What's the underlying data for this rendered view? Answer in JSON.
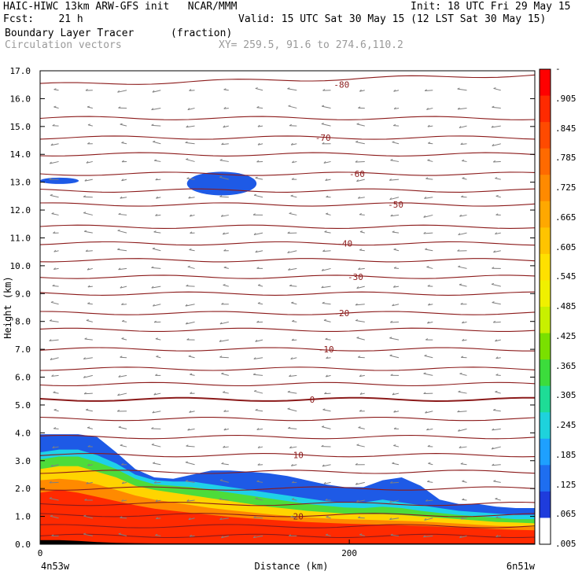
{
  "header": {
    "title_left": "HAIC-HIWC 13km ARW-GFS init   NCAR/MMM",
    "init_text": "Init: 18 UTC Fri 29 May 15",
    "fcst_text": "Fcst:    21 h",
    "valid_text": "Valid: 15 UTC Sat 30 May 15 (12 LST Sat 30 May 15)",
    "field_label": "Boundary Layer Tracer",
    "field_units": "(fraction)",
    "vector_label": "Circulation vectors",
    "xy_text": "XY= 259.5, 91.6 to 274.6,110.2"
  },
  "chart_data": {
    "type": "contour",
    "ylabel": "Height (km)",
    "xlabel": "Distance (km)",
    "x_left_label": "4n53w",
    "x_right_label": "6n51w",
    "ylim": [
      0,
      17
    ],
    "xlim": [
      0,
      320
    ],
    "y_ticks": [
      "0.0",
      "1.0",
      "2.0",
      "3.0",
      "4.0",
      "5.0",
      "6.0",
      "7.0",
      "8.0",
      "9.0",
      "10.0",
      "11.0",
      "12.0",
      "13.0",
      "14.0",
      "15.0",
      "16.0",
      "17.0"
    ],
    "x_ticks": [
      {
        "value": 0,
        "label": "0"
      },
      {
        "value": 200,
        "label": "200"
      }
    ],
    "temperature_contours": {
      "color": "#8b1a1a",
      "labels": [
        {
          "label": "-80",
          "x": 195,
          "y": 16.5
        },
        {
          "label": "-70",
          "x": 183,
          "y": 14.6
        },
        {
          "label": "-60",
          "x": 205,
          "y": 13.3
        },
        {
          "label": "-50",
          "x": 230,
          "y": 12.2
        },
        {
          "label": "-40",
          "x": 197,
          "y": 10.8
        },
        {
          "label": "-30",
          "x": 204,
          "y": 9.6
        },
        {
          "label": "-20",
          "x": 195,
          "y": 8.3
        },
        {
          "label": "-10",
          "x": 185,
          "y": 7.0
        },
        {
          "label": "0",
          "x": 176,
          "y": 5.2
        },
        {
          "label": "10",
          "x": 167,
          "y": 3.2
        },
        {
          "label": "20",
          "x": 167,
          "y": 1.0
        }
      ],
      "levels_km": [
        0.3,
        0.65,
        1.05,
        1.45,
        2.0,
        2.6,
        3.2,
        3.85,
        4.5,
        5.2,
        5.75,
        6.3,
        7.0,
        7.7,
        8.3,
        9.0,
        9.6,
        10.2,
        10.8,
        11.4,
        12.2,
        12.7,
        13.3,
        14.0,
        14.6,
        15.3,
        16.5
      ]
    },
    "tracer_layers": [
      {
        "fraction": 0.005,
        "color": "#1e5ae6",
        "top_km": [
          3.95,
          3.95,
          3.95,
          3.85,
          3.3,
          2.7,
          2.4,
          2.35,
          2.5,
          2.65,
          2.65,
          2.6,
          2.55,
          2.45,
          2.3,
          2.15,
          2.05,
          2.05,
          2.3,
          2.4,
          2.1,
          1.6,
          1.45,
          1.45,
          1.35,
          1.3,
          1.3
        ]
      },
      {
        "fraction": 0.125,
        "color": "#1fd0e8",
        "top_km": [
          3.3,
          3.4,
          3.4,
          3.2,
          2.9,
          2.5,
          2.3,
          2.25,
          2.25,
          2.15,
          2.05,
          1.95,
          1.85,
          1.75,
          1.65,
          1.55,
          1.5,
          1.5,
          1.6,
          1.5,
          1.4,
          1.3,
          1.2,
          1.15,
          1.1,
          1.05,
          1.05
        ]
      },
      {
        "fraction": 0.305,
        "color": "#4ddc3a",
        "top_km": [
          3.05,
          3.15,
          3.15,
          2.95,
          2.7,
          2.35,
          2.15,
          2.1,
          2.05,
          1.95,
          1.85,
          1.75,
          1.65,
          1.55,
          1.45,
          1.38,
          1.32,
          1.3,
          1.35,
          1.3,
          1.2,
          1.12,
          1.05,
          1.0,
          0.95,
          0.9,
          0.9
        ]
      },
      {
        "fraction": 0.545,
        "color": "#ffd400",
        "top_km": [
          2.7,
          2.8,
          2.8,
          2.6,
          2.4,
          2.1,
          1.95,
          1.85,
          1.75,
          1.65,
          1.55,
          1.45,
          1.35,
          1.28,
          1.2,
          1.15,
          1.1,
          1.08,
          1.08,
          1.05,
          1.0,
          0.95,
          0.9,
          0.85,
          0.8,
          0.78,
          0.75
        ]
      },
      {
        "fraction": 0.785,
        "color": "#ff8a00",
        "top_km": [
          2.3,
          2.35,
          2.3,
          2.15,
          1.95,
          1.75,
          1.6,
          1.5,
          1.4,
          1.3,
          1.22,
          1.15,
          1.08,
          1.02,
          0.97,
          0.93,
          0.9,
          0.88,
          0.86,
          0.84,
          0.82,
          0.78,
          0.74,
          0.7,
          0.66,
          0.64,
          0.62
        ]
      },
      {
        "fraction": 0.905,
        "color": "#ff2a00",
        "top_km": [
          1.85,
          1.95,
          1.85,
          1.7,
          1.55,
          1.4,
          1.28,
          1.2,
          1.12,
          1.05,
          0.98,
          0.93,
          0.88,
          0.84,
          0.8,
          0.77,
          0.74,
          0.72,
          0.7,
          0.68,
          0.66,
          0.63,
          0.6,
          0.57,
          0.54,
          0.52,
          0.5
        ]
      }
    ],
    "tracer_patches": [
      {
        "label": "upper blob",
        "x_range": [
          95,
          140
        ],
        "y_center": 12.95,
        "fraction": 0.005
      },
      {
        "label": "left edge",
        "x_range": [
          0,
          25
        ],
        "y_center": 13.05,
        "fraction": 0.005
      }
    ],
    "terrain_height_km": [
      0.15,
      0.15,
      0.12,
      0.08,
      0.05,
      0.04,
      0.03,
      0.03,
      0.03,
      0.03,
      0.03,
      0.03,
      0.03,
      0.03,
      0.03,
      0.03,
      0.03,
      0.03,
      0.03,
      0.03,
      0.03,
      0.03,
      0.03,
      0.03,
      0.03,
      0.03,
      0.03
    ],
    "colorbar": {
      "labels": [
        "-",
        ".905",
        ".845",
        ".785",
        ".725",
        ".665",
        ".605",
        ".545",
        ".485",
        ".425",
        ".365",
        ".305",
        ".245",
        ".185",
        ".125",
        ".065",
        ".005"
      ],
      "colors": [
        "#ff0000",
        "#ff2a00",
        "#ff4a00",
        "#ff6a00",
        "#ff8a00",
        "#ffa800",
        "#ffc400",
        "#ffe000",
        "#f0f000",
        "#c8f000",
        "#7ae000",
        "#3cdc3c",
        "#1edc96",
        "#1ed2dc",
        "#1ea0ff",
        "#1e6ef0",
        "#1e3cdc",
        "#ffffff"
      ]
    },
    "vector_color": "#808080"
  }
}
